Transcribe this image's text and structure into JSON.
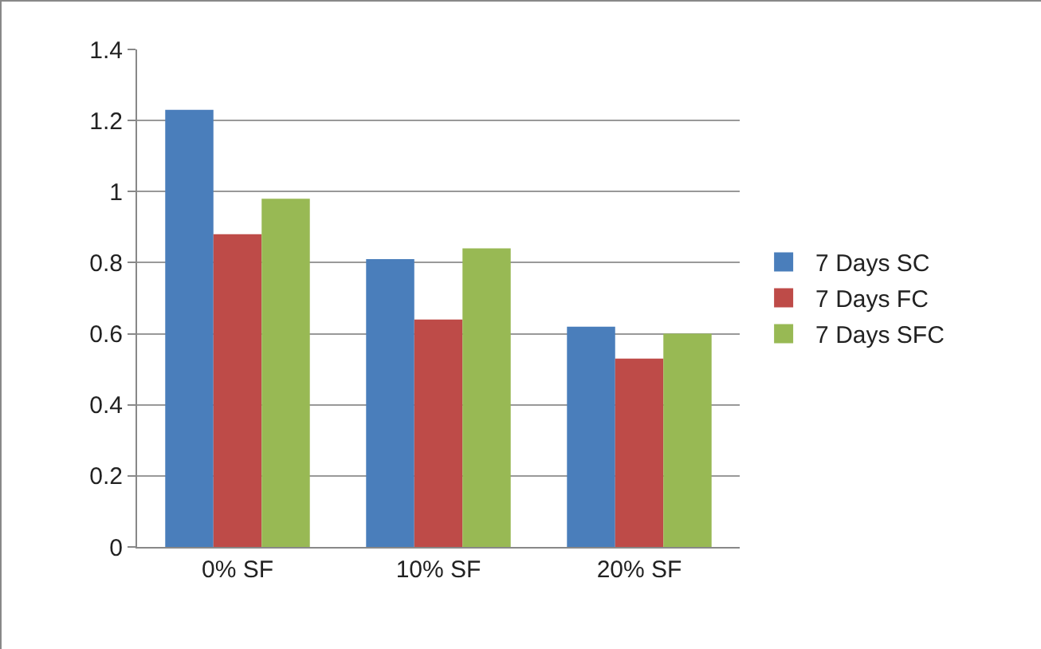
{
  "chart_data": {
    "type": "bar",
    "categories": [
      "0% SF",
      "10% SF",
      "20% SF"
    ],
    "series": [
      {
        "name": "7 Days SC",
        "color": "#4a7ebb",
        "values": [
          1.23,
          0.81,
          0.62
        ]
      },
      {
        "name": "7 Days FC",
        "color": "#be4b48",
        "values": [
          0.88,
          0.64,
          0.53
        ]
      },
      {
        "name": "7 Days SFC",
        "color": "#98b954",
        "values": [
          0.98,
          0.84,
          0.6
        ]
      }
    ],
    "ylim": [
      0,
      1.4
    ],
    "yticks": [
      0,
      0.2,
      0.4,
      0.6,
      0.8,
      1,
      1.2,
      1.4
    ],
    "grid": "y",
    "legend": "right"
  }
}
